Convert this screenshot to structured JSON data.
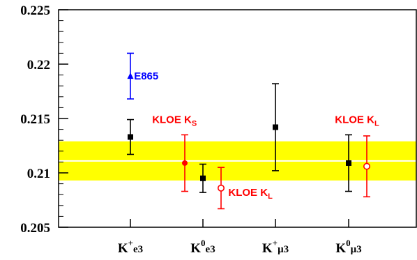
{
  "chart_data": {
    "type": "scatter",
    "title": "",
    "xlabel": "",
    "ylabel": "",
    "ylim": [
      0.205,
      0.225
    ],
    "yticks": [
      "0.205",
      "0.21",
      "0.215",
      "0.22",
      "0.225"
    ],
    "categories": [
      {
        "base": "K",
        "sup": "+",
        "sub": "e3"
      },
      {
        "base": "K",
        "sup": "0",
        "sub": "e3"
      },
      {
        "base": "K",
        "sup": "+",
        "sub": "μ3"
      },
      {
        "base": "K",
        "sup": "0",
        "sub": "μ3"
      }
    ],
    "band": {
      "center": 0.2111,
      "low": 0.2093,
      "high": 0.2129,
      "color": "#ffff00",
      "line_color": "#ffffff"
    },
    "points": [
      {
        "category": 0,
        "offset": 0,
        "y": 0.2189,
        "err": 0.0021,
        "marker": "triangle",
        "color": "#0000ff"
      },
      {
        "category": 0,
        "offset": 0,
        "y": 0.2133,
        "err": 0.0016,
        "marker": "square",
        "color": "#000000"
      },
      {
        "category": 1,
        "offset": -0.25,
        "y": 0.2109,
        "err": 0.0026,
        "marker": "circle-filled",
        "color": "#ff0000"
      },
      {
        "category": 1,
        "offset": 0,
        "y": 0.2095,
        "err": 0.0013,
        "marker": "square",
        "color": "#000000"
      },
      {
        "category": 1,
        "offset": 0.25,
        "y": 0.2086,
        "err": 0.0019,
        "marker": "circle-open",
        "color": "#ff0000"
      },
      {
        "category": 2,
        "offset": 0,
        "y": 0.2142,
        "err": 0.004,
        "marker": "square",
        "color": "#000000"
      },
      {
        "category": 3,
        "offset": 0,
        "y": 0.2109,
        "err": 0.0026,
        "marker": "square",
        "color": "#000000"
      },
      {
        "category": 3,
        "offset": 0.25,
        "y": 0.2106,
        "err": 0.0028,
        "marker": "circle-open",
        "color": "#ff0000"
      }
    ],
    "annotations": [
      {
        "text": "E865",
        "sub": "",
        "color": "#0000ff",
        "x_cat": 0.05,
        "y": 0.2189
      },
      {
        "text": "KLOE K",
        "sub": "S",
        "color": "#ff0000",
        "x_cat": 0.3,
        "y": 0.2149
      },
      {
        "text": "KLOE K",
        "sub": "L",
        "color": "#ff0000",
        "x_cat": 1.35,
        "y": 0.2082
      },
      {
        "text": "KLOE K",
        "sub": "L",
        "color": "#ff0000",
        "x_cat": 2.82,
        "y": 0.2149
      }
    ]
  }
}
